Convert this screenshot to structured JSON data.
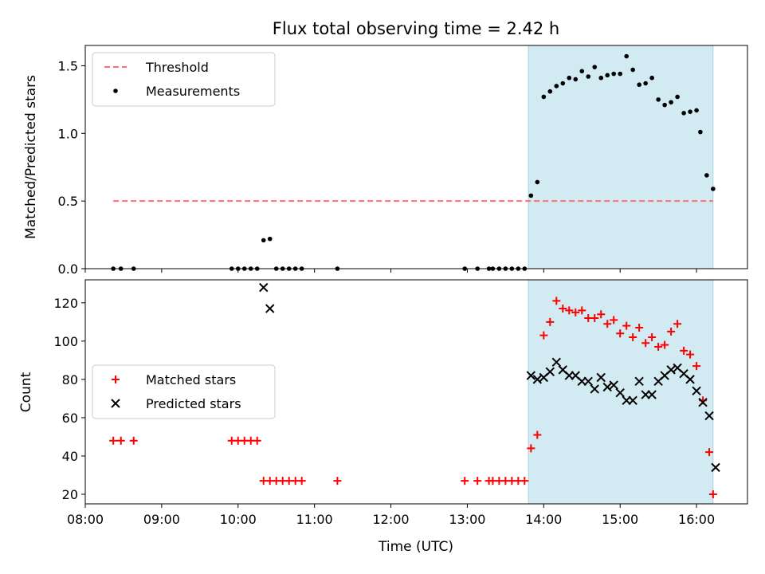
{
  "chart_data": {
    "title": "Flux total observing time = 2.42 h",
    "xlabel": "Time (UTC)",
    "x_unit": "hours UTC",
    "xlim": [
      "08:00",
      "16:40"
    ],
    "xticks": [
      "08:00",
      "09:00",
      "10:00",
      "11:00",
      "12:00",
      "13:00",
      "14:00",
      "15:00",
      "16:00"
    ],
    "shaded_interval": {
      "start": "13:48",
      "end": "16:13",
      "color": "#add8e6"
    },
    "panels": [
      {
        "type": "scatter",
        "ylabel": "Matched/Predicted stars",
        "ylim": [
          0,
          1.65
        ],
        "yticks": [
          "0.0",
          "0.5",
          "1.0",
          "1.5"
        ],
        "legend_position": "upper-left",
        "series": [
          {
            "name": "Threshold",
            "kind": "line",
            "style": "dashed",
            "color": "#ff7070",
            "points": [
              [
                "08:22",
                0.5
              ],
              [
                "16:13",
                0.5
              ]
            ]
          },
          {
            "name": "Measurements",
            "kind": "dot",
            "color": "#000000",
            "points": [
              [
                "08:22",
                0
              ],
              [
                "08:28",
                0
              ],
              [
                "08:38",
                0
              ],
              [
                "09:55",
                0
              ],
              [
                "10:00",
                0
              ],
              [
                "10:05",
                0
              ],
              [
                "10:10",
                0
              ],
              [
                "10:15",
                0
              ],
              [
                "10:20",
                0.21
              ],
              [
                "10:25",
                0.22
              ],
              [
                "10:30",
                0
              ],
              [
                "10:35",
                0
              ],
              [
                "10:40",
                0
              ],
              [
                "10:45",
                0
              ],
              [
                "10:50",
                0
              ],
              [
                "11:18",
                0
              ],
              [
                "12:58",
                0
              ],
              [
                "13:08",
                0
              ],
              [
                "13:17",
                0
              ],
              [
                "13:20",
                0
              ],
              [
                "13:25",
                0
              ],
              [
                "13:30",
                0
              ],
              [
                "13:35",
                0
              ],
              [
                "13:40",
                0
              ],
              [
                "13:45",
                0
              ],
              [
                "13:50",
                0.54
              ],
              [
                "13:55",
                0.64
              ],
              [
                "14:00",
                1.27
              ],
              [
                "14:05",
                1.31
              ],
              [
                "14:10",
                1.35
              ],
              [
                "14:15",
                1.37
              ],
              [
                "14:20",
                1.41
              ],
              [
                "14:25",
                1.4
              ],
              [
                "14:30",
                1.46
              ],
              [
                "14:35",
                1.42
              ],
              [
                "14:40",
                1.49
              ],
              [
                "14:45",
                1.41
              ],
              [
                "14:50",
                1.43
              ],
              [
                "14:55",
                1.44
              ],
              [
                "15:00",
                1.44
              ],
              [
                "15:05",
                1.57
              ],
              [
                "15:10",
                1.47
              ],
              [
                "15:15",
                1.36
              ],
              [
                "15:20",
                1.37
              ],
              [
                "15:25",
                1.41
              ],
              [
                "15:30",
                1.25
              ],
              [
                "15:35",
                1.21
              ],
              [
                "15:40",
                1.23
              ],
              [
                "15:45",
                1.27
              ],
              [
                "15:50",
                1.15
              ],
              [
                "15:55",
                1.16
              ],
              [
                "16:00",
                1.17
              ],
              [
                "16:03",
                1.01
              ],
              [
                "16:08",
                0.69
              ],
              [
                "16:13",
                0.59
              ]
            ]
          }
        ]
      },
      {
        "type": "scatter",
        "ylabel": "Count",
        "ylim": [
          15,
          132
        ],
        "yticks": [
          "20",
          "40",
          "60",
          "80",
          "100",
          "120"
        ],
        "legend_position": "center-left",
        "series": [
          {
            "name": "Matched stars",
            "marker": "plus",
            "color": "#ff0000",
            "points": [
              [
                "08:22",
                48
              ],
              [
                "08:28",
                48
              ],
              [
                "08:38",
                48
              ],
              [
                "09:55",
                48
              ],
              [
                "10:00",
                48
              ],
              [
                "10:05",
                48
              ],
              [
                "10:10",
                48
              ],
              [
                "10:15",
                48
              ],
              [
                "10:20",
                27
              ],
              [
                "10:25",
                27
              ],
              [
                "10:30",
                27
              ],
              [
                "10:35",
                27
              ],
              [
                "10:40",
                27
              ],
              [
                "10:45",
                27
              ],
              [
                "10:50",
                27
              ],
              [
                "11:18",
                27
              ],
              [
                "12:58",
                27
              ],
              [
                "13:08",
                27
              ],
              [
                "13:17",
                27
              ],
              [
                "13:20",
                27
              ],
              [
                "13:25",
                27
              ],
              [
                "13:30",
                27
              ],
              [
                "13:35",
                27
              ],
              [
                "13:40",
                27
              ],
              [
                "13:45",
                27
              ],
              [
                "13:50",
                44
              ],
              [
                "13:55",
                51
              ],
              [
                "14:00",
                103
              ],
              [
                "14:05",
                110
              ],
              [
                "14:10",
                121
              ],
              [
                "14:15",
                117
              ],
              [
                "14:20",
                116
              ],
              [
                "14:25",
                115
              ],
              [
                "14:30",
                116
              ],
              [
                "14:35",
                112
              ],
              [
                "14:40",
                112
              ],
              [
                "14:45",
                114
              ],
              [
                "14:50",
                109
              ],
              [
                "14:55",
                111
              ],
              [
                "15:00",
                104
              ],
              [
                "15:05",
                108
              ],
              [
                "15:10",
                102
              ],
              [
                "15:15",
                107
              ],
              [
                "15:20",
                99
              ],
              [
                "15:25",
                102
              ],
              [
                "15:30",
                97
              ],
              [
                "15:35",
                98
              ],
              [
                "15:40",
                105
              ],
              [
                "15:45",
                109
              ],
              [
                "15:50",
                95
              ],
              [
                "15:55",
                93
              ],
              [
                "16:00",
                87
              ],
              [
                "16:05",
                69
              ],
              [
                "16:10",
                42
              ],
              [
                "16:13",
                20
              ]
            ]
          },
          {
            "name": "Predicted stars",
            "marker": "x",
            "color": "#000000",
            "points": [
              [
                "10:20",
                128
              ],
              [
                "10:25",
                117
              ],
              [
                "13:50",
                82
              ],
              [
                "13:55",
                80
              ],
              [
                "14:00",
                81
              ],
              [
                "14:05",
                84
              ],
              [
                "14:10",
                89
              ],
              [
                "14:15",
                85
              ],
              [
                "14:20",
                82
              ],
              [
                "14:25",
                82
              ],
              [
                "14:30",
                79
              ],
              [
                "14:35",
                79
              ],
              [
                "14:40",
                75
              ],
              [
                "14:45",
                81
              ],
              [
                "14:50",
                76
              ],
              [
                "14:55",
                77
              ],
              [
                "15:00",
                73
              ],
              [
                "15:05",
                69
              ],
              [
                "15:10",
                69
              ],
              [
                "15:15",
                79
              ],
              [
                "15:20",
                72
              ],
              [
                "15:25",
                72
              ],
              [
                "15:30",
                79
              ],
              [
                "15:35",
                82
              ],
              [
                "15:40",
                85
              ],
              [
                "15:45",
                86
              ],
              [
                "15:50",
                83
              ],
              [
                "15:55",
                80
              ],
              [
                "16:00",
                74
              ],
              [
                "16:05",
                68
              ],
              [
                "16:10",
                61
              ],
              [
                "16:15",
                34
              ]
            ]
          }
        ]
      }
    ]
  }
}
